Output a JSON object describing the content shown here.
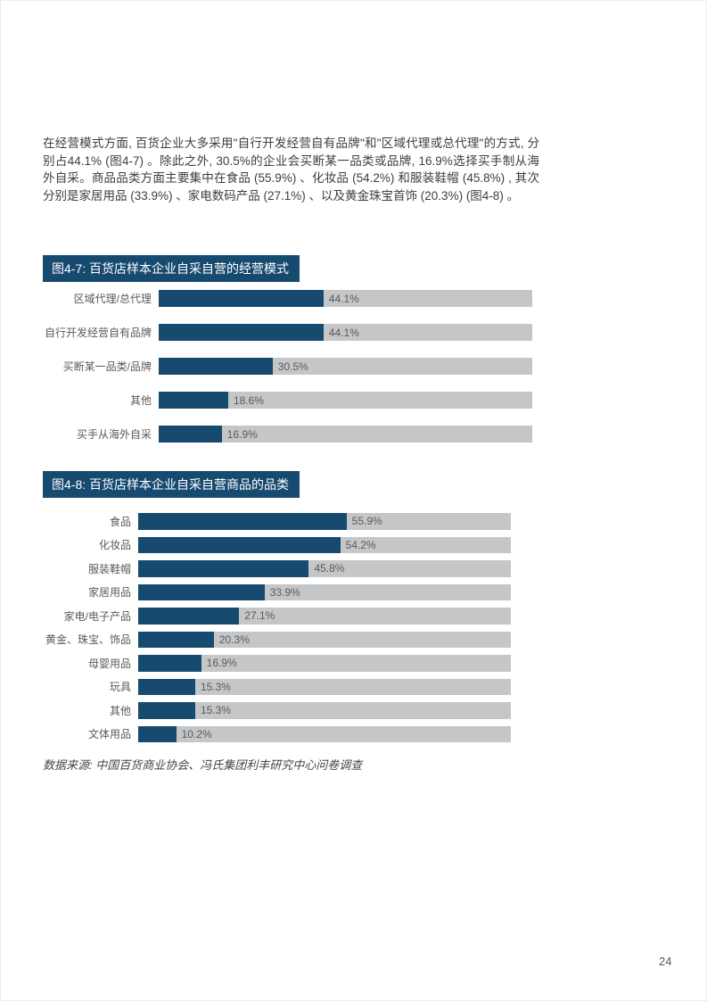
{
  "page": {
    "paragraph": "在经营模式方面, 百货企业大多采用\"自行开发经营自有品牌\"和\"区域代理或总代理\"的方式, 分别占44.1% (图4-7) 。除此之外, 30.5%的企业会买断某一品类或品牌, 16.9%选择买手制从海外自采。商品品类方面主要集中在食品 (55.9%) 、化妆品 (54.2%) 和服装鞋帽 (45.8%) , 其次分别是家居用品 (33.9%) 、家电数码产品 (27.1%) 、以及黄金珠宝首饰 (20.3%)  (图4-8) 。",
    "source_note": "数据来源: 中国百货商业协会、冯氏集团利丰研究中心问卷调查",
    "page_number": "24"
  },
  "colors": {
    "bar_blue": "#164A6F",
    "banner_blue": "#164A6F",
    "track_gray": "#C5C6C8",
    "body_text": "#3E3E3E",
    "label_text": "#595A5C"
  },
  "chart_data": [
    {
      "type": "bar",
      "orientation": "horizontal",
      "title": "图4-7: 百货店样本企业自采自营的经营模式",
      "categories": [
        "区域代理/总代理",
        "自行开发经营自有品牌",
        "买断某一品类/品牌",
        "其他",
        "买手从海外自采"
      ],
      "values": [
        44.1,
        44.1,
        30.5,
        18.6,
        16.9
      ],
      "value_labels": [
        "44.1%",
        "44.1%",
        "30.5%",
        "18.6%",
        "16.9%"
      ],
      "xlim": [
        0,
        100
      ],
      "grid": false,
      "legend": "none",
      "label_column_width": 122
    },
    {
      "type": "bar",
      "orientation": "horizontal",
      "title": "图4-8: 百货店样本企业自采自营商品的品类",
      "categories": [
        "食品",
        "化妆品",
        "服装鞋帽",
        "家居用品",
        "家电/电子产品",
        "黄金、珠宝、饰品",
        "母婴用品",
        "玩具",
        "其他",
        "文体用品"
      ],
      "values": [
        55.9,
        54.2,
        45.8,
        33.9,
        27.1,
        20.3,
        16.9,
        15.3,
        15.3,
        10.2
      ],
      "value_labels": [
        "55.9%",
        "54.2%",
        "45.8%",
        "33.9%",
        "27.1%",
        "20.3%",
        "16.9%",
        "15.3%",
        "15.3%",
        "10.2%"
      ],
      "xlim": [
        0,
        100
      ],
      "grid": false,
      "legend": "none",
      "label_column_width": 99
    }
  ]
}
